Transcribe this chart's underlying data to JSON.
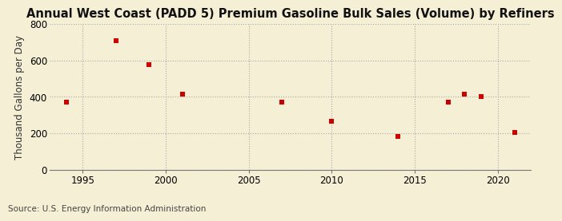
{
  "title": "Annual West Coast (PADD 5) Premium Gasoline Bulk Sales (Volume) by Refiners",
  "ylabel": "Thousand Gallons per Day",
  "source": "Source: U.S. Energy Information Administration",
  "background_color": "#f5efd5",
  "x_values": [
    1994,
    1997,
    1999,
    2001,
    2007,
    2010,
    2014,
    2017,
    2018,
    2019,
    2021
  ],
  "y_values": [
    370,
    710,
    575,
    415,
    370,
    265,
    185,
    370,
    415,
    400,
    205
  ],
  "marker_color": "#cc0000",
  "marker": "s",
  "marker_size": 16,
  "xlim": [
    1993,
    2022
  ],
  "ylim": [
    0,
    800
  ],
  "yticks": [
    0,
    200,
    400,
    600,
    800
  ],
  "xticks": [
    1995,
    2000,
    2005,
    2010,
    2015,
    2020
  ],
  "grid_color": "#aaaaaa",
  "grid_linestyle": ":",
  "title_fontsize": 10.5,
  "label_fontsize": 8.5,
  "tick_fontsize": 8.5,
  "source_fontsize": 7.5
}
